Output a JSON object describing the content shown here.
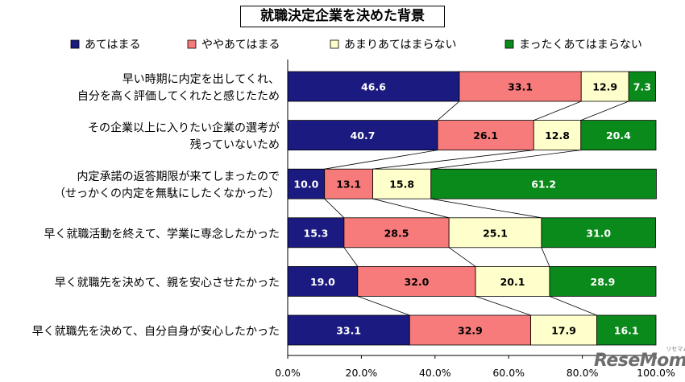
{
  "chart_data": {
    "type": "bar",
    "orientation": "horizontal",
    "stacked": true,
    "title": "就職決定企業を決めた背景",
    "categories": [
      [
        "早い時期に内定を出してくれ、",
        "自分を高く評価してくれたと感じたため"
      ],
      [
        "その企業以上に入りたい企業の選考が",
        "残っていないため"
      ],
      [
        "内定承諾の返答期限が来てしまったので",
        "（せっかくの内定を無駄にしたくなかった）"
      ],
      [
        "早く就職活動を終えて、学業に専念したかった"
      ],
      [
        "早く就職先を決めて、親を安心させたかった"
      ],
      [
        "早く就職先を決めて、自分自身が安心したかった"
      ]
    ],
    "series": [
      {
        "name": "あてはまる",
        "color": "#1a1a80",
        "label_color": "#ffffff",
        "values": [
          46.6,
          40.7,
          10.0,
          15.3,
          19.0,
          33.1
        ],
        "labels": [
          "46.6",
          "40.7",
          "10.0",
          "15.3",
          "19.0",
          "33.1"
        ]
      },
      {
        "name": "ややあてはまる",
        "color": "#f77b7b",
        "label_color": "#000000",
        "values": [
          33.1,
          26.1,
          13.1,
          28.5,
          32.0,
          32.9
        ],
        "labels": [
          "33.1",
          "26.1",
          "13.1",
          "28.5",
          "32.0",
          "32.9"
        ]
      },
      {
        "name": "あまりあてはまらない",
        "color": "#ffffcc",
        "label_color": "#000000",
        "values": [
          12.9,
          12.8,
          15.8,
          25.1,
          20.1,
          17.9
        ],
        "labels": [
          "12.9",
          "12.8",
          "15.8",
          "25.1",
          "20.1",
          "17.9"
        ]
      },
      {
        "name": "まったくあてはまらない",
        "color": "#0a8a1a",
        "label_color": "#ffffff",
        "values": [
          7.3,
          20.4,
          61.2,
          31.0,
          28.9,
          16.1
        ],
        "labels": [
          "7.3",
          "20.4",
          "61.2",
          "31.0",
          "28.9",
          "16.1"
        ]
      }
    ],
    "xlim": [
      0,
      100
    ],
    "xticks": [
      "0.0%",
      "20.0%",
      "40.0%",
      "60.0%",
      "80.0%",
      "100.0%"
    ],
    "grid": false,
    "legend_position": "top",
    "connector_lines": true
  },
  "watermark": {
    "text": "ReseMom",
    "kana": "リセマム"
  }
}
